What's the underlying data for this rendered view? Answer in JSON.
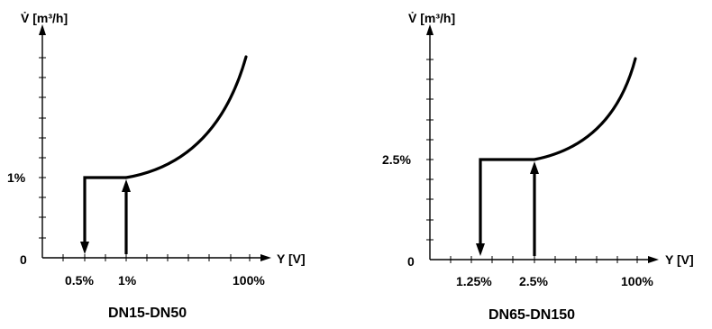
{
  "panels": [
    {
      "y_axis_label": "V̇ [m³/h]",
      "x_axis_label": "Y [V]",
      "origin_label": "0",
      "y_level_label": "1%",
      "x_tick_labels": [
        "0.5%",
        "1%",
        "100%"
      ],
      "caption": "DN15-DN50"
    },
    {
      "y_axis_label": "V̇ [m³/h]",
      "x_axis_label": "Y [V]",
      "origin_label": "0",
      "y_level_label": "2.5%",
      "x_tick_labels": [
        "1.25%",
        "2.5%",
        "100%"
      ],
      "caption": "DN65-DN150"
    }
  ]
}
